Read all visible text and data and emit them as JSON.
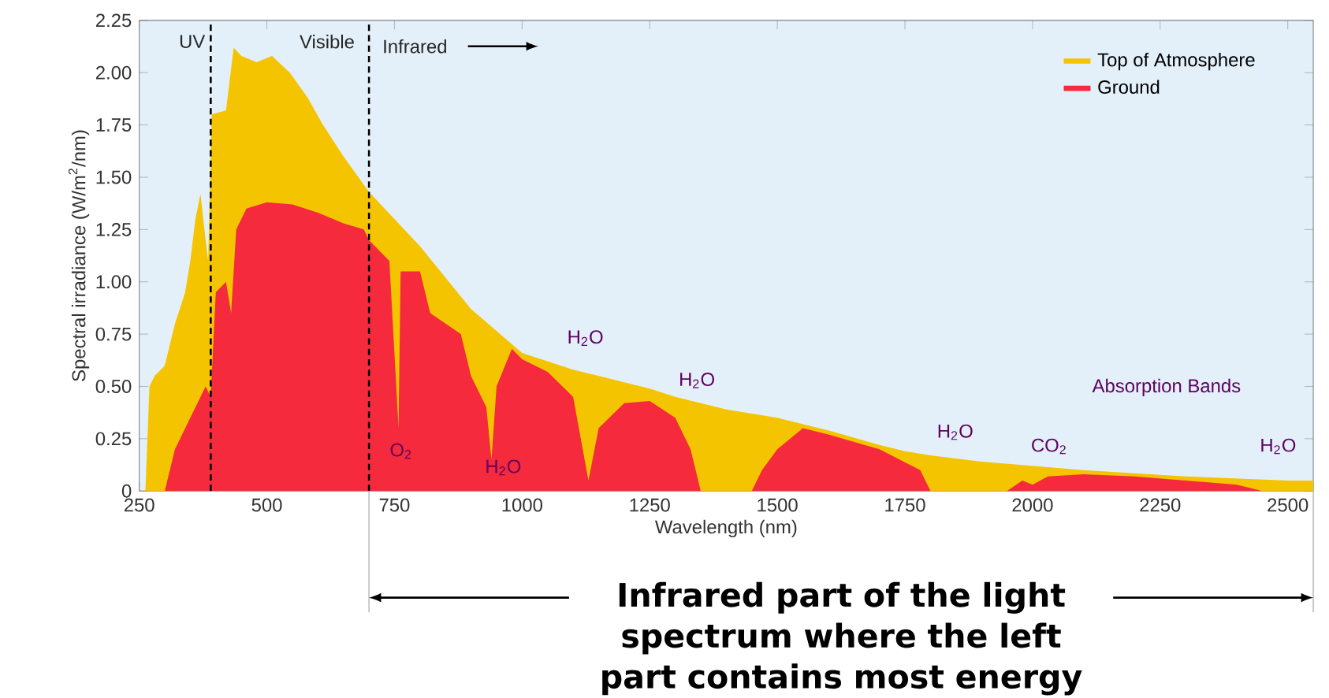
{
  "chart_data": {
    "type": "area",
    "xlabel": "Wavelength (nm)",
    "ylabel": "Spectral irradiance (W/m$^{2}$/nm)",
    "xlim": [
      250,
      2550
    ],
    "ylim": [
      0,
      2.25
    ],
    "xticks": [
      250,
      500,
      750,
      1000,
      1250,
      1500,
      1750,
      2000,
      2250,
      2500
    ],
    "yticks": [
      0,
      0.25,
      {
        "value": 0.5,
        "label": "0.50"
      },
      0.75,
      {
        "value": 1,
        "label": "1.00"
      },
      1.25,
      {
        "value": 1.5,
        "label": "1.50"
      },
      1.75,
      {
        "value": 2,
        "label": "2.00"
      },
      2.25
    ],
    "legend": "top right",
    "grid": false,
    "series": [
      {
        "name": "Top of Atmosphere",
        "color": "#f5c400",
        "x": [
          250,
          262,
          270,
          280,
          300,
          320,
          340,
          350,
          360,
          370,
          380,
          385,
          392,
          420,
          435,
          450,
          480,
          510,
          545,
          580,
          610,
          650,
          700,
          750,
          800,
          900,
          1000,
          1100,
          1200,
          1250,
          1300,
          1400,
          1500,
          1600,
          1700,
          1750,
          1800,
          1900,
          2000,
          2100,
          2200,
          2300,
          2400,
          2500,
          2550
        ],
        "values": [
          0,
          0,
          0.5,
          0.55,
          0.6,
          0.8,
          0.95,
          1.1,
          1.3,
          1.42,
          1.2,
          1.1,
          1.8,
          1.82,
          2.12,
          2.08,
          2.05,
          2.08,
          2.0,
          1.88,
          1.75,
          1.6,
          1.43,
          1.3,
          1.17,
          0.87,
          0.66,
          0.58,
          0.52,
          0.49,
          0.45,
          0.39,
          0.35,
          0.29,
          0.22,
          0.19,
          0.17,
          0.14,
          0.12,
          0.1,
          0.085,
          0.07,
          0.06,
          0.05,
          0.05
        ]
      },
      {
        "name": "Ground",
        "color": "#f52a3c",
        "x": [
          250,
          300,
          320,
          350,
          380,
          390,
          400,
          420,
          430,
          440,
          460,
          500,
          550,
          600,
          650,
          690,
          700,
          720,
          740,
          758,
          762,
          766,
          800,
          820,
          850,
          880,
          900,
          930,
          940,
          950,
          980,
          1000,
          1050,
          1100,
          1130,
          1150,
          1200,
          1250,
          1300,
          1330,
          1350,
          1450,
          1470,
          1500,
          1550,
          1600,
          1700,
          1780,
          1800,
          1950,
          1980,
          2000,
          2030,
          2100,
          2200,
          2300,
          2400,
          2450,
          2550
        ],
        "values": [
          0,
          0,
          0.2,
          0.35,
          0.5,
          0.45,
          0.95,
          1.0,
          0.85,
          1.25,
          1.35,
          1.38,
          1.37,
          1.33,
          1.28,
          1.25,
          1.2,
          1.15,
          1.1,
          0.3,
          1.05,
          1.05,
          1.05,
          0.85,
          0.8,
          0.75,
          0.55,
          0.4,
          0.15,
          0.5,
          0.68,
          0.63,
          0.57,
          0.45,
          0.05,
          0.3,
          0.42,
          0.43,
          0.35,
          0.2,
          0,
          0,
          0.1,
          0.2,
          0.3,
          0.27,
          0.2,
          0.1,
          0,
          0,
          0.05,
          0.03,
          0.07,
          0.08,
          0.07,
          0.05,
          0.03,
          0,
          0
        ]
      }
    ],
    "ref_lines": [
      {
        "axis": "x",
        "value": 390,
        "line_style": "dashed"
      },
      {
        "axis": "x",
        "value": 700,
        "line_style": "dashed"
      }
    ],
    "annotations": [
      "UV",
      "Visible",
      "Infrared",
      "O$_{2}$",
      "H$_{2}$O",
      "H$_{2}$O",
      "H$_{2}$O",
      "H$_{2}$O",
      "CO$_{2}$",
      "Absorption Bands",
      "H$_{2}$O",
      "Infrared part of the light spectrum where the left part contains most energy"
    ]
  }
}
